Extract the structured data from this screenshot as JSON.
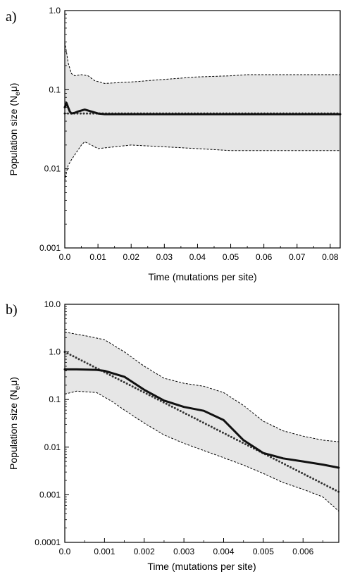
{
  "chart_data": [
    {
      "panel_label": "a)",
      "type": "line",
      "xlabel": "Time (mutations per site)",
      "ylabel_main": "Population size (N",
      "ylabel_sub": "e",
      "ylabel_end": "μ)",
      "y_scale": "log",
      "ylim": [
        0.001,
        1.0
      ],
      "xlim": [
        0,
        0.083
      ],
      "x_ticks": [
        0.0,
        0.01,
        0.02,
        0.03,
        0.04,
        0.05,
        0.06,
        0.07,
        0.08
      ],
      "x_tick_labels": [
        "0.0",
        "0.01",
        "0.02",
        "0.03",
        "0.04",
        "0.05",
        "0.06",
        "0.07",
        "0.08"
      ],
      "y_ticks": [
        0.001,
        0.01,
        0.1,
        1.0
      ],
      "y_tick_labels": [
        "0.001",
        "0.01",
        "0.1",
        "1.0"
      ],
      "series": [
        {
          "role": "upper",
          "style": "dashed",
          "x": [
            0,
            0.0005,
            0.001,
            0.002,
            0.003,
            0.005,
            0.007,
            0.009,
            0.012,
            0.02,
            0.03,
            0.04,
            0.05,
            0.055,
            0.06,
            0.07,
            0.08,
            0.083
          ],
          "y": [
            0.4,
            0.3,
            0.22,
            0.16,
            0.15,
            0.155,
            0.15,
            0.13,
            0.12,
            0.125,
            0.135,
            0.145,
            0.15,
            0.155,
            0.155,
            0.155,
            0.155,
            0.155
          ]
        },
        {
          "role": "lower",
          "style": "dashed",
          "x": [
            0,
            0.0005,
            0.001,
            0.002,
            0.003,
            0.005,
            0.006,
            0.008,
            0.01,
            0.015,
            0.02,
            0.03,
            0.04,
            0.05,
            0.06,
            0.07,
            0.08,
            0.083
          ],
          "y": [
            0.007,
            0.009,
            0.011,
            0.013,
            0.015,
            0.02,
            0.022,
            0.02,
            0.018,
            0.019,
            0.02,
            0.019,
            0.018,
            0.017,
            0.017,
            0.017,
            0.017,
            0.017
          ]
        },
        {
          "role": "median",
          "style": "solid",
          "x": [
            0,
            0.0005,
            0.001,
            0.0015,
            0.002,
            0.003,
            0.004,
            0.006,
            0.008,
            0.01,
            0.012,
            0.02,
            0.04,
            0.06,
            0.083
          ],
          "y": [
            0.06,
            0.068,
            0.06,
            0.053,
            0.05,
            0.051,
            0.053,
            0.056,
            0.053,
            0.05,
            0.049,
            0.049,
            0.049,
            0.049,
            0.049
          ]
        },
        {
          "role": "true",
          "style": "dotted",
          "x": [
            0,
            0.083
          ],
          "y": [
            0.05,
            0.05
          ]
        }
      ]
    },
    {
      "panel_label": "b)",
      "type": "line",
      "xlabel": "Time (mutations per site)",
      "ylabel_main": "Population size (N",
      "ylabel_sub": "e",
      "ylabel_end": "μ)",
      "y_scale": "log",
      "ylim": [
        0.0001,
        10.0
      ],
      "xlim": [
        0,
        0.0069
      ],
      "x_ticks": [
        0.0,
        0.001,
        0.002,
        0.003,
        0.004,
        0.005,
        0.006
      ],
      "x_tick_labels": [
        "0.0",
        "0.001",
        "0.002",
        "0.003",
        "0.004",
        "0.005",
        "0.006"
      ],
      "y_ticks": [
        0.0001,
        0.001,
        0.01,
        0.1,
        1.0,
        10.0
      ],
      "y_tick_labels": [
        "0.0001",
        "0.001",
        "0.01",
        "0.1",
        "1.0",
        "10.0"
      ],
      "series": [
        {
          "role": "upper",
          "style": "dashed",
          "x": [
            0,
            0.0005,
            0.001,
            0.0015,
            0.002,
            0.0025,
            0.003,
            0.0035,
            0.004,
            0.0045,
            0.005,
            0.0055,
            0.006,
            0.0065,
            0.0069
          ],
          "y": [
            2.6,
            2.2,
            1.8,
            1.0,
            0.5,
            0.28,
            0.22,
            0.19,
            0.14,
            0.075,
            0.035,
            0.022,
            0.017,
            0.014,
            0.013
          ]
        },
        {
          "role": "lower",
          "style": "dashed",
          "x": [
            0,
            0.0003,
            0.0008,
            0.0012,
            0.0015,
            0.002,
            0.0025,
            0.003,
            0.0035,
            0.004,
            0.0045,
            0.005,
            0.0055,
            0.006,
            0.0065,
            0.0069
          ],
          "y": [
            0.13,
            0.15,
            0.14,
            0.09,
            0.06,
            0.032,
            0.018,
            0.012,
            0.0085,
            0.006,
            0.0042,
            0.0028,
            0.0018,
            0.0013,
            0.0009,
            0.00045
          ]
        },
        {
          "role": "median",
          "style": "solid",
          "x": [
            0,
            0.0003,
            0.0008,
            0.001,
            0.0015,
            0.002,
            0.0025,
            0.003,
            0.0035,
            0.004,
            0.0045,
            0.005,
            0.0055,
            0.006,
            0.0065,
            0.0069
          ],
          "y": [
            0.43,
            0.43,
            0.42,
            0.4,
            0.3,
            0.16,
            0.095,
            0.07,
            0.058,
            0.037,
            0.014,
            0.0075,
            0.0058,
            0.005,
            0.0043,
            0.0037
          ]
        },
        {
          "role": "true",
          "style": "dotted",
          "x": [
            0,
            0.0069
          ],
          "y": [
            1.0,
            0.00115
          ]
        }
      ]
    }
  ]
}
